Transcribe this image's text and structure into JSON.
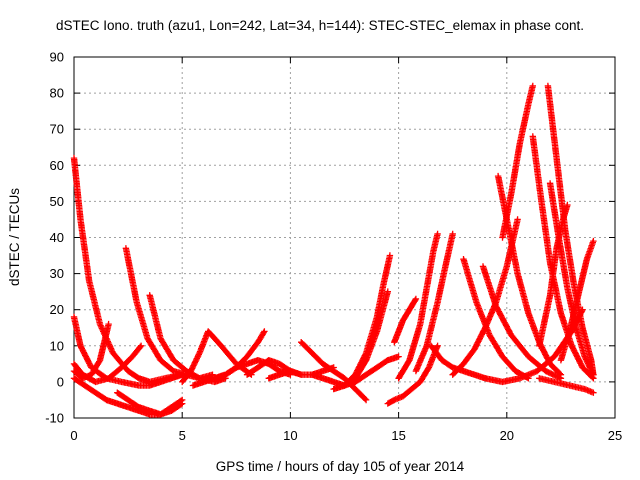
{
  "chart_data": {
    "type": "scatter",
    "title": "dSTEC Iono. truth (azu1, Lon=242, Lat=34, h=144): STEC-STEC_elemax in phase cont.",
    "xlabel": "GPS time / hours of day 105 of year 2014",
    "ylabel": "dSTEC  / TECUs",
    "xlim": [
      0,
      25
    ],
    "ylim": [
      -10,
      90
    ],
    "xticks": [
      0,
      5,
      10,
      15,
      20,
      25
    ],
    "yticks": [
      -10,
      0,
      10,
      20,
      30,
      40,
      50,
      60,
      70,
      80,
      90
    ],
    "grid": true,
    "marker": "+",
    "color": "#ff0000",
    "series": [
      {
        "x": [
          0.0,
          0.3,
          0.7,
          1.2,
          1.8,
          2.5,
          3.0,
          3.5,
          4.2,
          5.0
        ],
        "y": [
          62,
          45,
          28,
          16,
          8,
          3,
          1,
          0,
          1,
          2
        ]
      },
      {
        "x": [
          0.0,
          0.3,
          0.8,
          1.5,
          2.2,
          3.0,
          3.5,
          4.0,
          4.5,
          5.0
        ],
        "y": [
          18,
          10,
          4,
          1,
          0,
          -1,
          -1,
          0,
          1,
          2
        ]
      },
      {
        "x": [
          0.0,
          0.4,
          1.0,
          1.6,
          2.2,
          2.7,
          3.1
        ],
        "y": [
          5,
          2,
          0,
          1,
          4,
          7,
          10
        ]
      },
      {
        "x": [
          0.0,
          0.5,
          1.0,
          1.5,
          2.0,
          2.5,
          3.0,
          3.5,
          4.0,
          4.5,
          5.0
        ],
        "y": [
          1,
          -1,
          -3,
          -5,
          -6,
          -7,
          -8,
          -9,
          -9,
          -8,
          -6
        ]
      },
      {
        "x": [
          0.0,
          0.4,
          0.8,
          1.2,
          1.6
        ],
        "y": [
          3,
          1,
          2,
          6,
          16
        ]
      },
      {
        "x": [
          2.4,
          2.9,
          3.4,
          4.0,
          4.6,
          5.2,
          5.8,
          6.4
        ],
        "y": [
          37,
          22,
          12,
          6,
          3,
          2,
          1,
          2
        ]
      },
      {
        "x": [
          3.5,
          4.0,
          4.6,
          5.2,
          5.8,
          6.5,
          7.0
        ],
        "y": [
          24,
          12,
          6,
          3,
          1,
          0,
          1
        ]
      },
      {
        "x": [
          2.0,
          2.5,
          3.0,
          3.5,
          4.0,
          4.5,
          5.0
        ],
        "y": [
          -3,
          -5,
          -7,
          -8,
          -9,
          -7,
          -5
        ]
      },
      {
        "x": [
          5.0,
          5.4,
          5.8,
          6.2,
          6.8,
          7.5,
          8.2
        ],
        "y": [
          0,
          3,
          8,
          14,
          10,
          5,
          2
        ]
      },
      {
        "x": [
          5.5,
          6.0,
          6.5,
          7.0,
          7.5,
          8.0,
          8.5,
          8.8
        ],
        "y": [
          -1,
          0,
          1,
          2,
          4,
          7,
          11,
          14
        ]
      },
      {
        "x": [
          6.5,
          7.0,
          7.5,
          8.0,
          8.5,
          9.0,
          9.5,
          10.0
        ],
        "y": [
          1,
          2,
          4,
          5,
          6,
          5,
          3,
          2
        ]
      },
      {
        "x": [
          8.0,
          8.5,
          9.0,
          9.5,
          10.0,
          10.5
        ],
        "y": [
          2,
          4,
          6,
          5,
          3,
          2
        ]
      },
      {
        "x": [
          9.0,
          9.5,
          10.0,
          10.5,
          11.0,
          11.5,
          12.0
        ],
        "y": [
          1,
          2,
          3,
          2,
          2,
          3,
          4
        ]
      },
      {
        "x": [
          10.5,
          11.0,
          11.5,
          12.0,
          12.5,
          13.0,
          13.5
        ],
        "y": [
          11,
          8,
          5,
          3,
          1,
          -2,
          -5
        ]
      },
      {
        "x": [
          11.0,
          11.5,
          12.0,
          12.5,
          13.0,
          13.5,
          14.0,
          14.5
        ],
        "y": [
          2,
          1,
          0,
          -1,
          1,
          6,
          14,
          25
        ]
      },
      {
        "x": [
          12.5,
          13.0,
          13.5,
          14.0,
          14.3,
          14.6
        ],
        "y": [
          -1,
          2,
          8,
          18,
          27,
          35
        ]
      },
      {
        "x": [
          12.0,
          12.5,
          13.0,
          13.5,
          14.0,
          14.5,
          15.0
        ],
        "y": [
          -2,
          -1,
          0,
          2,
          4,
          6,
          7
        ]
      },
      {
        "x": [
          14.5,
          14.8,
          15.2,
          15.6,
          16.0,
          16.4,
          16.8
        ],
        "y": [
          -6,
          -5,
          -4,
          -2,
          0,
          4,
          10
        ]
      },
      {
        "x": [
          14.8,
          15.0,
          15.2,
          15.4,
          15.6,
          15.8
        ],
        "y": [
          11,
          14,
          17,
          19,
          21,
          23
        ]
      },
      {
        "x": [
          15.0,
          15.5,
          16.0,
          16.3,
          16.6,
          16.8
        ],
        "y": [
          1,
          6,
          16,
          26,
          36,
          41
        ]
      },
      {
        "x": [
          15.8,
          16.3,
          16.8,
          17.2,
          17.5
        ],
        "y": [
          3,
          10,
          22,
          33,
          41
        ]
      },
      {
        "x": [
          16.5,
          17.0,
          17.5,
          18.0,
          18.5,
          19.0
        ],
        "y": [
          10,
          6,
          4,
          3,
          2,
          1
        ]
      },
      {
        "x": [
          17.5,
          18.0,
          18.5,
          19.0,
          19.5,
          20.0,
          20.5
        ],
        "y": [
          2,
          5,
          9,
          15,
          22,
          32,
          45
        ]
      },
      {
        "x": [
          18.0,
          18.6,
          19.2,
          19.8,
          20.4,
          21.0
        ],
        "y": [
          34,
          22,
          13,
          7,
          3,
          1
        ]
      },
      {
        "x": [
          18.9,
          19.5,
          20.2,
          21.0,
          21.8,
          22.5
        ],
        "y": [
          32,
          21,
          13,
          7,
          3,
          1
        ]
      },
      {
        "x": [
          19.6,
          20.0,
          20.5,
          21.0,
          21.5,
          22.0,
          22.5
        ],
        "y": [
          57,
          45,
          30,
          19,
          11,
          5,
          2
        ]
      },
      {
        "x": [
          19.8,
          20.2,
          20.6,
          21.0,
          21.2
        ],
        "y": [
          40,
          52,
          66,
          77,
          82
        ]
      },
      {
        "x": [
          21.2,
          21.6,
          22.0,
          22.5,
          23.0,
          23.5,
          24.0
        ],
        "y": [
          68,
          50,
          33,
          19,
          10,
          4,
          1
        ]
      },
      {
        "x": [
          21.9,
          22.3,
          22.7,
          23.1,
          23.5,
          23.9,
          24.0
        ],
        "y": [
          82,
          62,
          42,
          27,
          15,
          6,
          2
        ]
      },
      {
        "x": [
          22.0,
          22.4,
          22.8,
          23.2,
          23.6,
          24.0
        ],
        "y": [
          55,
          40,
          26,
          15,
          7,
          2
        ]
      },
      {
        "x": [
          21.5,
          22.0,
          22.3,
          22.6,
          22.8
        ],
        "y": [
          10,
          24,
          37,
          45,
          49
        ]
      },
      {
        "x": [
          22.5,
          22.9,
          23.3,
          23.7,
          24.0
        ],
        "y": [
          6,
          14,
          24,
          34,
          39
        ]
      },
      {
        "x": [
          19.0,
          19.8,
          20.6,
          21.4,
          22.2,
          23.0,
          23.5
        ],
        "y": [
          1,
          0,
          1,
          3,
          7,
          14,
          20
        ]
      },
      {
        "x": [
          21.5,
          22.2,
          22.9,
          23.6,
          24.0
        ],
        "y": [
          1,
          0,
          -1,
          -2,
          -3
        ]
      }
    ]
  }
}
